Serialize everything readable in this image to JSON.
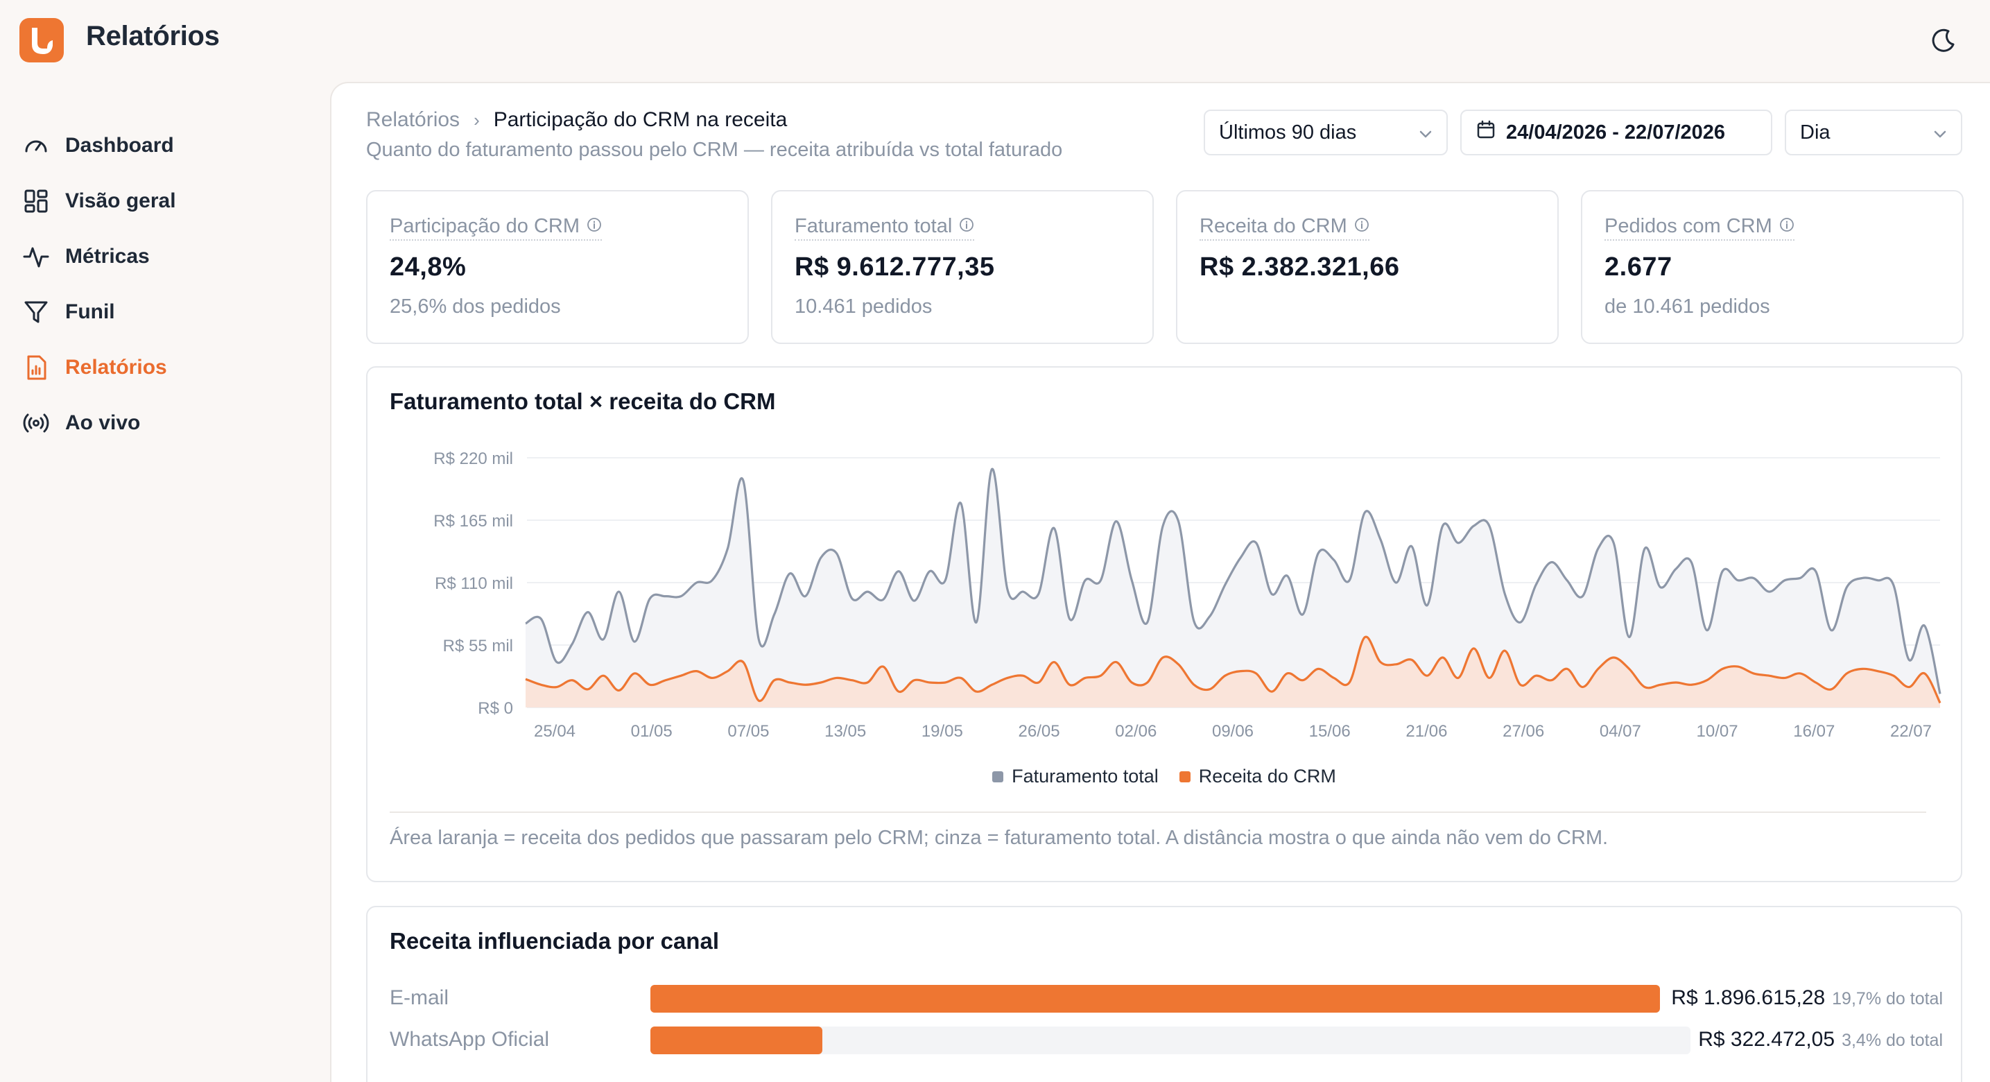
{
  "app": {
    "title": "Relatórios",
    "brand_color": "#ee7632"
  },
  "sidebar": {
    "items": [
      {
        "label": "Dashboard",
        "icon": "gauge-icon",
        "active": false
      },
      {
        "label": "Visão geral",
        "icon": "layout-grid-icon",
        "active": false
      },
      {
        "label": "Métricas",
        "icon": "activity-icon",
        "active": false
      },
      {
        "label": "Funil",
        "icon": "filter-icon",
        "active": false
      },
      {
        "label": "Relatórios",
        "icon": "file-chart-icon",
        "active": true
      },
      {
        "label": "Ao vivo",
        "icon": "broadcast-icon",
        "active": false
      }
    ]
  },
  "header": {
    "breadcrumb_root": "Relatórios",
    "breadcrumb_current": "Participação do CRM na receita",
    "subtitle": "Quanto do faturamento passou pelo CRM — receita atribuída vs total faturado",
    "period_select": "Últimos 90 dias",
    "date_range": "24/04/2026 - 22/07/2026",
    "granularity_select": "Dia"
  },
  "kpis": [
    {
      "label": "Participação do CRM",
      "value": "24,8%",
      "sub": "25,6% dos pedidos"
    },
    {
      "label": "Faturamento total",
      "value": "R$ 9.612.777,35",
      "sub": "10.461 pedidos"
    },
    {
      "label": "Receita do CRM",
      "value": "R$ 2.382.321,66",
      "sub": ""
    },
    {
      "label": "Pedidos com CRM",
      "value": "2.677",
      "sub": "de 10.461 pedidos"
    }
  ],
  "chart": {
    "title": "Faturamento total × receita do CRM",
    "note": "Área laranja = receita dos pedidos que passaram pelo CRM; cinza = faturamento total. A distância mostra o que ainda não vem do CRM."
  },
  "chart_data": {
    "type": "area",
    "title": "Faturamento total × receita do CRM",
    "x_start": "24/04",
    "x_end": "22/07",
    "x_tick_labels": [
      "25/04",
      "01/05",
      "07/05",
      "13/05",
      "19/05",
      "26/05",
      "02/06",
      "09/06",
      "15/06",
      "21/06",
      "27/06",
      "04/07",
      "10/07",
      "16/07",
      "22/07"
    ],
    "y_tick_labels": [
      "R$ 0",
      "R$ 55 mil",
      "R$ 110 mil",
      "R$ 165 mil",
      "R$ 220 mil"
    ],
    "ylim": [
      0,
      220
    ],
    "y_unit": "R$ mil",
    "legend_position": "bottom",
    "series": [
      {
        "name": "Faturamento total",
        "color": "#8d97a8",
        "values": [
          74,
          78,
          40,
          56,
          84,
          60,
          102,
          58,
          96,
          98,
          98,
          110,
          112,
          140,
          200,
          60,
          82,
          118,
          98,
          132,
          136,
          96,
          102,
          95,
          120,
          94,
          120,
          112,
          180,
          75,
          210,
          104,
          102,
          100,
          158,
          78,
          112,
          112,
          164,
          112,
          75,
          160,
          164,
          76,
          80,
          108,
          132,
          145,
          100,
          116,
          82,
          136,
          130,
          112,
          172,
          148,
          110,
          142,
          90,
          160,
          145,
          160,
          160,
          100,
          75,
          108,
          128,
          112,
          98,
          140,
          145,
          62,
          140,
          106,
          122,
          128,
          68,
          120,
          112,
          114,
          102,
          112,
          114,
          120,
          68,
          106,
          114,
          112,
          108,
          42,
          72,
          12
        ]
      },
      {
        "name": "Receita do CRM",
        "color": "#ee7632",
        "values": [
          25,
          20,
          18,
          24,
          16,
          28,
          15,
          30,
          20,
          24,
          28,
          32,
          26,
          32,
          40,
          6,
          24,
          22,
          20,
          22,
          26,
          24,
          22,
          36,
          14,
          24,
          22,
          22,
          26,
          14,
          20,
          26,
          28,
          22,
          40,
          20,
          26,
          28,
          40,
          22,
          22,
          44,
          38,
          20,
          16,
          28,
          32,
          30,
          14,
          30,
          24,
          34,
          26,
          22,
          62,
          40,
          38,
          42,
          28,
          44,
          26,
          52,
          26,
          50,
          20,
          28,
          24,
          34,
          18,
          34,
          44,
          34,
          18,
          20,
          22,
          20,
          24,
          34,
          36,
          30,
          28,
          26,
          30,
          22,
          16,
          30,
          34,
          32,
          28,
          18,
          30,
          4
        ]
      }
    ]
  },
  "channels": {
    "title": "Receita influenciada por canal",
    "items": [
      {
        "label": "E-mail",
        "value": "R$ 1.896.615,28",
        "pct": "19,7% do total",
        "share": 1.0
      },
      {
        "label": "WhatsApp Oficial",
        "value": "R$ 322.472,05",
        "pct": "3,4% do total",
        "share": 0.17
      }
    ]
  }
}
